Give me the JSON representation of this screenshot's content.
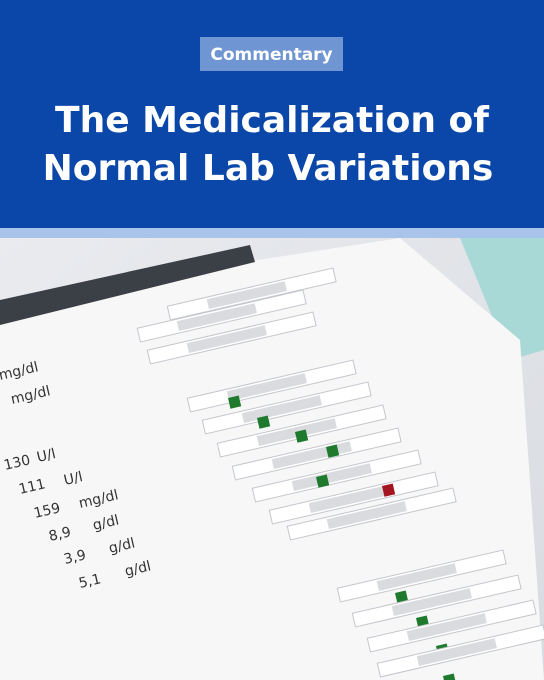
{
  "badge": "Commentary",
  "title": [
    "The Medicalization of",
    "Normal Lab Variations"
  ],
  "report": {
    "rows": [
      {
        "unit": "mg/dl"
      },
      {
        "unit": "mg/dl"
      },
      {
        "value": "130",
        "unit": "U/l"
      },
      {
        "value": "111",
        "unit": "U/l"
      },
      {
        "value": "159",
        "unit": "mg/dl"
      },
      {
        "value": "8,9",
        "unit": "g/dl"
      },
      {
        "value": "3,9",
        "unit": "g/dl"
      },
      {
        "value": "5,1",
        "unit": "g/dl"
      }
    ]
  }
}
